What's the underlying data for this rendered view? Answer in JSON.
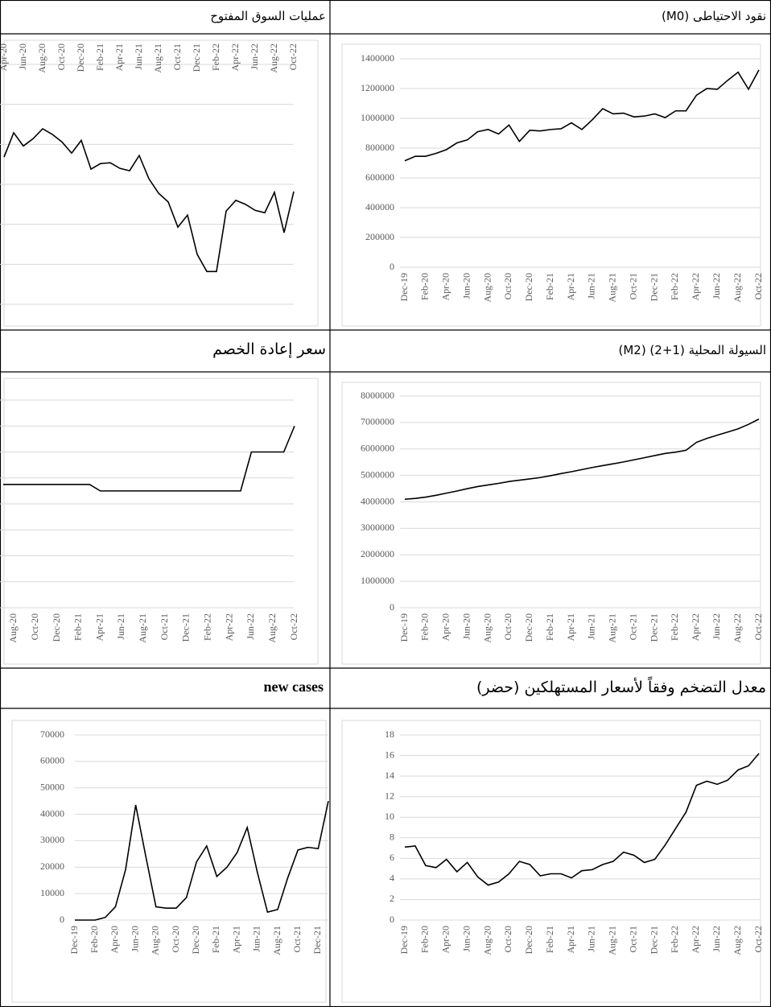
{
  "chart_data": [
    {
      "type": "line",
      "title": "نقود الاحتياطى (M0)",
      "color": "#000000",
      "grid": true,
      "xaxis": "bottom",
      "ylabels": true,
      "categories": [
        "Dec-19",
        null,
        "Feb-20",
        null,
        "Apr-20",
        null,
        "Jun-20",
        null,
        "Aug-20",
        null,
        "Oct-20",
        null,
        "Dec-20",
        null,
        "Feb-21",
        null,
        "Apr-21",
        null,
        "Jun-21",
        null,
        "Aug-21",
        null,
        "Oct-21",
        null,
        "Dec-21",
        null,
        "Feb-22",
        null,
        "Apr-22",
        null,
        "Jun-22",
        null,
        "Aug-22",
        null,
        "Oct-22"
      ],
      "values": [
        715000,
        745000,
        745000,
        765000,
        790000,
        835000,
        855000,
        910000,
        925000,
        895000,
        955000,
        845000,
        920000,
        915000,
        925000,
        930000,
        970000,
        925000,
        990000,
        1065000,
        1030000,
        1035000,
        1010000,
        1015000,
        1030000,
        1005000,
        1050000,
        1050000,
        1155000,
        1200000,
        1195000,
        1255000,
        1310000,
        1195000,
        1325000
      ],
      "ylim": [
        0,
        1400000
      ],
      "yticks": [
        0,
        200000,
        400000,
        600000,
        800000,
        1000000,
        1200000,
        1400000
      ]
    },
    {
      "type": "line",
      "title": "عمليات السوق المفتوح",
      "color": "#000000",
      "grid": true,
      "xaxis": "top",
      "ylabels": false,
      "categories": [
        "Apr-20",
        null,
        "Jun-20",
        null,
        "Aug-20",
        null,
        "Oct-20",
        null,
        "Dec-20",
        null,
        "Feb-21",
        null,
        "Apr-21",
        null,
        "Jun-21",
        null,
        "Aug-21",
        null,
        "Oct-21",
        null,
        "Dec-21",
        null,
        "Feb-22",
        null,
        "Apr-22",
        null,
        "Jun-22",
        null,
        "Aug-22",
        null,
        "Oct-22"
      ],
      "values": [
        3.68,
        4.29,
        3.96,
        4.14,
        4.39,
        4.25,
        4.06,
        3.78,
        4.1,
        3.38,
        3.52,
        3.54,
        3.4,
        3.34,
        3.72,
        3.14,
        2.78,
        2.56,
        1.93,
        2.23,
        1.25,
        0.82,
        0.82,
        2.33,
        2.6,
        2.5,
        2.35,
        2.29,
        2.8,
        1.79,
        2.82
      ],
      "ylim": [
        0,
        6
      ],
      "yticks": [
        0,
        1,
        2,
        3,
        4,
        5,
        6
      ]
    },
    {
      "type": "line",
      "title": "السيولة المحلية (1+2) (M2)",
      "color": "#000000",
      "grid": true,
      "xaxis": "bottom",
      "ylabels": true,
      "categories": [
        "Dec-19",
        null,
        "Feb-20",
        null,
        "Apr-20",
        null,
        "Jun-20",
        null,
        "Aug-20",
        null,
        "Oct-20",
        null,
        "Dec-20",
        null,
        "Feb-21",
        null,
        "Apr-21",
        null,
        "Jun-21",
        null,
        "Aug-21",
        null,
        "Oct-21",
        null,
        "Dec-21",
        null,
        "Feb-22",
        null,
        "Apr-22",
        null,
        "Jun-22",
        null,
        "Aug-22",
        null,
        "Oct-22"
      ],
      "values": [
        4100000,
        4130000,
        4180000,
        4250000,
        4330000,
        4410000,
        4500000,
        4580000,
        4640000,
        4700000,
        4770000,
        4820000,
        4870000,
        4920000,
        4990000,
        5070000,
        5140000,
        5220000,
        5300000,
        5370000,
        5440000,
        5510000,
        5590000,
        5670000,
        5750000,
        5830000,
        5880000,
        5950000,
        6250000,
        6400000,
        6520000,
        6640000,
        6760000,
        6930000,
        7130000
      ],
      "ylim": [
        0,
        8000000
      ],
      "yticks": [
        0,
        1000000,
        2000000,
        3000000,
        4000000,
        5000000,
        6000000,
        7000000,
        8000000
      ]
    },
    {
      "type": "line",
      "title": "سعر إعادة الخصم",
      "color": "#000000",
      "grid": true,
      "xaxis": "bottom",
      "ylabels": false,
      "categories": [
        null,
        "Aug-20",
        null,
        "Oct-20",
        null,
        "Dec-20",
        null,
        "Feb-21",
        null,
        "Apr-21",
        null,
        "Jun-21",
        null,
        "Aug-21",
        null,
        "Oct-21",
        null,
        "Dec-21",
        null,
        "Feb-22",
        null,
        "Apr-22",
        null,
        "Jun-22",
        null,
        "Aug-22",
        null,
        "Oct-22"
      ],
      "values": [
        4.75,
        4.75,
        4.75,
        4.75,
        4.75,
        4.75,
        4.75,
        4.75,
        4.75,
        4.5,
        4.5,
        4.5,
        4.5,
        4.5,
        4.5,
        4.5,
        4.5,
        4.5,
        4.5,
        4.5,
        4.5,
        4.5,
        4.5,
        6,
        6,
        6,
        6,
        7
      ],
      "ylim": [
        0,
        8
      ],
      "yticks": [
        0,
        1,
        2,
        3,
        4,
        5,
        6,
        7,
        8
      ]
    },
    {
      "type": "line",
      "title": "معدل التضخم وفقاً لأسعار المستهلكين (حضر)",
      "color": "#000000",
      "grid": true,
      "xaxis": "bottom",
      "ylabels": true,
      "categories": [
        "Dec-19",
        null,
        "Feb-20",
        null,
        "Apr-20",
        null,
        "Jun-20",
        null,
        "Aug-20",
        null,
        "Oct-20",
        null,
        "Dec-20",
        null,
        "Feb-21",
        null,
        "Apr-21",
        null,
        "Jun-21",
        null,
        "Aug-21",
        null,
        "Oct-21",
        null,
        "Dec-21",
        null,
        "Feb-22",
        null,
        "Apr-22",
        null,
        "Jun-22",
        null,
        "Aug-22",
        null,
        "Oct-22"
      ],
      "values": [
        7.1,
        7.2,
        5.3,
        5.1,
        5.9,
        4.7,
        5.6,
        4.2,
        3.4,
        3.7,
        4.5,
        5.7,
        5.4,
        4.3,
        4.5,
        4.5,
        4.1,
        4.8,
        4.9,
        5.4,
        5.7,
        6.6,
        6.3,
        5.6,
        5.9,
        7.3,
        8.9,
        10.5,
        13.1,
        13.5,
        13.2,
        13.6,
        14.6,
        15.0,
        16.2
      ],
      "ylim": [
        0,
        18
      ],
      "yticks": [
        0,
        2,
        4,
        6,
        8,
        10,
        12,
        14,
        16,
        18
      ]
    },
    {
      "type": "line",
      "title": "new cases",
      "color": "#000000",
      "grid": true,
      "xaxis": "bottom",
      "ylabels": true,
      "categories": [
        "Dec-19",
        null,
        "Feb-20",
        null,
        "Apr-20",
        null,
        "Jun-20",
        null,
        "Aug-20",
        null,
        "Oct-20",
        null,
        "Dec-20",
        null,
        "Feb-21",
        null,
        "Apr-21",
        null,
        "Jun-21",
        null,
        "Aug-21",
        null,
        "Oct-21",
        null,
        "Dec-21",
        null
      ],
      "values": [
        0,
        0,
        0,
        1000,
        5000,
        19000,
        43500,
        24000,
        5000,
        4500,
        4500,
        8500,
        22000,
        28000,
        16500,
        20000,
        25500,
        35000,
        18000,
        3000,
        4000,
        16000,
        26500,
        27500,
        27000,
        45000
      ],
      "ylim": [
        0,
        70000
      ],
      "yticks": [
        0,
        10000,
        20000,
        30000,
        40000,
        50000,
        60000,
        70000
      ]
    }
  ]
}
